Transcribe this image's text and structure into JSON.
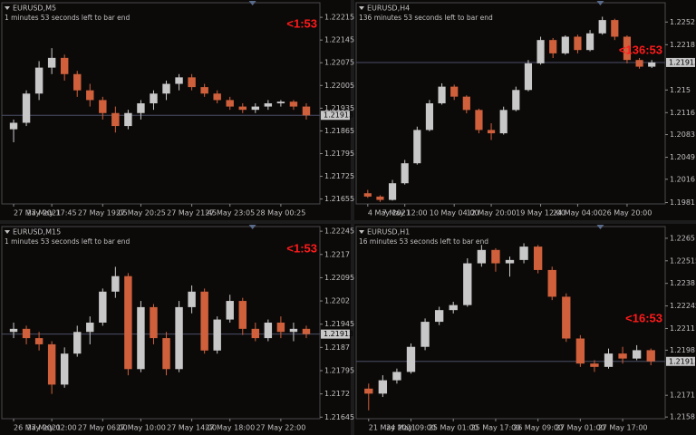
{
  "chart_data": [
    {
      "type": "candlestick",
      "title": "EURUSD,M5",
      "subtitle": "1 minutes 53 seconds left to bar end",
      "annotation": "<1:53",
      "series": [
        {
          "up_color": "#c8c8c8",
          "down_color": "#d0603c",
          "values": [
            [
              1.2187,
              1.219,
              1.2183,
              1.2189
            ],
            [
              1.2189,
              1.2199,
              1.2188,
              1.2198
            ],
            [
              1.2198,
              1.2208,
              1.2196,
              1.2206
            ],
            [
              1.2206,
              1.2212,
              1.2204,
              1.2209
            ],
            [
              1.2209,
              1.221,
              1.2202,
              1.2204
            ],
            [
              1.2204,
              1.2205,
              1.2197,
              1.2199
            ],
            [
              1.2199,
              1.2201,
              1.2194,
              1.2196
            ],
            [
              1.2196,
              1.2197,
              1.219,
              1.2192
            ],
            [
              1.2192,
              1.2194,
              1.2186,
              1.2188
            ],
            [
              1.2188,
              1.2193,
              1.2187,
              1.2192
            ],
            [
              1.2192,
              1.2196,
              1.219,
              1.2195
            ],
            [
              1.2195,
              1.2199,
              1.2193,
              1.2198
            ],
            [
              1.2198,
              1.2202,
              1.2196,
              1.2201
            ],
            [
              1.2201,
              1.2204,
              1.2199,
              1.2203
            ],
            [
              1.2203,
              1.2204,
              1.2199,
              1.22
            ],
            [
              1.22,
              1.2201,
              1.2197,
              1.2198
            ],
            [
              1.2198,
              1.2199,
              1.2195,
              1.2196
            ],
            [
              1.2196,
              1.2197,
              1.2193,
              1.2194
            ],
            [
              1.2194,
              1.2195,
              1.2192,
              1.2193
            ],
            [
              1.2193,
              1.2195,
              1.2192,
              1.2194
            ],
            [
              1.2194,
              1.2196,
              1.2193,
              1.2195
            ],
            [
              1.2195,
              1.2196,
              1.2194,
              1.21955
            ],
            [
              1.21955,
              1.2196,
              1.2193,
              1.2194
            ],
            [
              1.2194,
              1.2195,
              1.219,
              1.21913
            ]
          ]
        }
      ],
      "ylim": [
        1.2164,
        1.2226
      ],
      "yticks": [
        1.22215,
        1.22145,
        1.22075,
        1.22005,
        1.21935,
        1.21865,
        1.21795,
        1.21725,
        1.21655
      ],
      "xticks": [
        {
          "value": 0,
          "label": "27 May 2021"
        },
        {
          "value": 3,
          "label": "27 May 17:45"
        },
        {
          "value": 7,
          "label": "27 May 19:05"
        },
        {
          "value": 10,
          "label": "27 May 20:25"
        },
        {
          "value": 14,
          "label": "27 May 21:45"
        },
        {
          "value": 17,
          "label": "27 May 23:05"
        },
        {
          "value": 21,
          "label": "28 May 00:25"
        }
      ],
      "current_price": 1.21913
    },
    {
      "type": "candlestick",
      "title": "EURUSD,H4",
      "subtitle": "136 minutes 53 seconds left to bar end",
      "annotation": "<136:53",
      "series": [
        {
          "up_color": "#c8c8c8",
          "down_color": "#d0603c",
          "values": [
            [
              1.1995,
              1.2,
              1.1988,
              1.199
            ],
            [
              1.199,
              1.1992,
              1.1982,
              1.1985
            ],
            [
              1.1985,
              1.2015,
              1.1984,
              1.201
            ],
            [
              1.201,
              1.2045,
              1.2008,
              1.204
            ],
            [
              1.204,
              1.2095,
              1.2038,
              1.209
            ],
            [
              1.209,
              1.2135,
              1.2088,
              1.213
            ],
            [
              1.213,
              1.216,
              1.2128,
              1.2155
            ],
            [
              1.2155,
              1.2158,
              1.2135,
              1.214
            ],
            [
              1.214,
              1.2142,
              1.2115,
              1.212
            ],
            [
              1.212,
              1.2122,
              1.2085,
              1.209
            ],
            [
              1.209,
              1.21,
              1.2075,
              1.2085
            ],
            [
              1.2085,
              1.2125,
              1.2083,
              1.212
            ],
            [
              1.212,
              1.2155,
              1.2118,
              1.215
            ],
            [
              1.215,
              1.2195,
              1.2148,
              1.219
            ],
            [
              1.219,
              1.223,
              1.2188,
              1.2225
            ],
            [
              1.2225,
              1.2228,
              1.2198,
              1.2205
            ],
            [
              1.2205,
              1.2232,
              1.2203,
              1.223
            ],
            [
              1.223,
              1.2233,
              1.2205,
              1.221
            ],
            [
              1.221,
              1.224,
              1.2208,
              1.2235
            ],
            [
              1.2235,
              1.226,
              1.2233,
              1.2255
            ],
            [
              1.2255,
              1.2257,
              1.2225,
              1.223
            ],
            [
              1.223,
              1.2232,
              1.219,
              1.2195
            ],
            [
              1.2195,
              1.2198,
              1.2182,
              1.2185
            ],
            [
              1.2185,
              1.2195,
              1.2183,
              1.21913
            ]
          ]
        }
      ],
      "ylim": [
        1.1979,
        1.2281
      ],
      "yticks": [
        1.2252,
        1.2218,
        1.215,
        1.2116,
        1.2083,
        1.2049,
        1.2016,
        1.1981
      ],
      "xticks": [
        {
          "value": 0,
          "label": "4 May 2021"
        },
        {
          "value": 3,
          "label": "7 May 12:00"
        },
        {
          "value": 7,
          "label": "10 May 04:00"
        },
        {
          "value": 10,
          "label": "12 May 20:00"
        },
        {
          "value": 14,
          "label": "19 May 12:00"
        },
        {
          "value": 17,
          "label": "24 May 04:00"
        },
        {
          "value": 21,
          "label": "26 May 20:00"
        }
      ],
      "current_price": 1.21913
    },
    {
      "type": "candlestick",
      "title": "EURUSD,M15",
      "subtitle": "1 minutes 53 seconds left to bar end",
      "annotation": "<1:53",
      "series": [
        {
          "up_color": "#c8c8c8",
          "down_color": "#d0603c",
          "values": [
            [
              1.2192,
              1.2195,
              1.219,
              1.2193
            ],
            [
              1.2193,
              1.2194,
              1.2188,
              1.219
            ],
            [
              1.219,
              1.2192,
              1.2186,
              1.2188
            ],
            [
              1.2188,
              1.2189,
              1.2172,
              1.2175
            ],
            [
              1.2175,
              1.2187,
              1.2174,
              1.2185
            ],
            [
              1.2185,
              1.2194,
              1.2184,
              1.2192
            ],
            [
              1.2192,
              1.2197,
              1.2188,
              1.2195
            ],
            [
              1.2195,
              1.2206,
              1.2194,
              1.2205
            ],
            [
              1.2205,
              1.2213,
              1.2203,
              1.221
            ],
            [
              1.221,
              1.2211,
              1.2178,
              1.218
            ],
            [
              1.218,
              1.2202,
              1.2179,
              1.22
            ],
            [
              1.22,
              1.2201,
              1.2188,
              1.219
            ],
            [
              1.219,
              1.2192,
              1.2178,
              1.218
            ],
            [
              1.218,
              1.2202,
              1.2179,
              1.22
            ],
            [
              1.22,
              1.2207,
              1.2198,
              1.2205
            ],
            [
              1.2205,
              1.2206,
              1.2185,
              1.2186
            ],
            [
              1.2186,
              1.2197,
              1.2185,
              1.2196
            ],
            [
              1.2196,
              1.2204,
              1.2195,
              1.2202
            ],
            [
              1.2202,
              1.2203,
              1.2191,
              1.2193
            ],
            [
              1.2193,
              1.2195,
              1.2189,
              1.219
            ],
            [
              1.219,
              1.2196,
              1.2189,
              1.2195
            ],
            [
              1.2195,
              1.2197,
              1.219,
              1.2192
            ],
            [
              1.2192,
              1.2195,
              1.2189,
              1.2193
            ],
            [
              1.2193,
              1.2194,
              1.219,
              1.21913
            ]
          ]
        }
      ],
      "ylim": [
        1.2164,
        1.2226
      ],
      "yticks": [
        1.22245,
        1.2217,
        1.22095,
        1.2202,
        1.21945,
        1.2187,
        1.21795,
        1.2172,
        1.21645
      ],
      "xticks": [
        {
          "value": 0,
          "label": "26 May 2021"
        },
        {
          "value": 3,
          "label": "27 May 02:00"
        },
        {
          "value": 7,
          "label": "27 May 06:00"
        },
        {
          "value": 10,
          "label": "27 May 10:00"
        },
        {
          "value": 14,
          "label": "27 May 14:00"
        },
        {
          "value": 17,
          "label": "27 May 18:00"
        },
        {
          "value": 21,
          "label": "27 May 22:00"
        }
      ],
      "current_price": 1.21913
    },
    {
      "type": "candlestick",
      "title": "EURUSD,H1",
      "subtitle": "16 minutes 53 seconds left to bar end",
      "annotation": "<16:53",
      "series": [
        {
          "up_color": "#c8c8c8",
          "down_color": "#d0603c",
          "values": [
            [
              1.2175,
              1.2178,
              1.2162,
              1.2172
            ],
            [
              1.2172,
              1.2183,
              1.217,
              1.218
            ],
            [
              1.218,
              1.2187,
              1.2178,
              1.2185
            ],
            [
              1.2185,
              1.2202,
              1.2184,
              1.22
            ],
            [
              1.22,
              1.2217,
              1.2198,
              1.2215
            ],
            [
              1.2215,
              1.2224,
              1.2213,
              1.2222
            ],
            [
              1.2222,
              1.2227,
              1.222,
              1.2225
            ],
            [
              1.2225,
              1.2253,
              1.2224,
              1.225
            ],
            [
              1.225,
              1.2261,
              1.2248,
              1.2258
            ],
            [
              1.2258,
              1.2259,
              1.2245,
              1.225
            ],
            [
              1.225,
              1.2254,
              1.2242,
              1.2252
            ],
            [
              1.2252,
              1.2262,
              1.225,
              1.226
            ],
            [
              1.226,
              1.2261,
              1.2244,
              1.2246
            ],
            [
              1.2246,
              1.2248,
              1.2228,
              1.223
            ],
            [
              1.223,
              1.2232,
              1.2203,
              1.2205
            ],
            [
              1.2205,
              1.2207,
              1.2188,
              1.219
            ],
            [
              1.219,
              1.2192,
              1.2185,
              1.2188
            ],
            [
              1.2188,
              1.2199,
              1.2187,
              1.2196
            ],
            [
              1.2196,
              1.22,
              1.219,
              1.2193
            ],
            [
              1.2193,
              1.2201,
              1.2192,
              1.2198
            ],
            [
              1.2198,
              1.2199,
              1.2189,
              1.21913
            ]
          ]
        }
      ],
      "ylim": [
        1.2157,
        1.2272
      ],
      "yticks": [
        1.2265,
        1.22515,
        1.2238,
        1.22245,
        1.2211,
        1.2198,
        1.2171,
        1.2158
      ],
      "xticks": [
        {
          "value": 0,
          "label": "21 May 2021"
        },
        {
          "value": 3,
          "label": "24 May 09:00"
        },
        {
          "value": 6,
          "label": "25 May 01:00"
        },
        {
          "value": 9,
          "label": "25 May 17:00"
        },
        {
          "value": 12,
          "label": "26 May 09:00"
        },
        {
          "value": 15,
          "label": "27 May 01:00"
        },
        {
          "value": 18,
          "label": "27 May 17:00"
        }
      ],
      "current_price": 1.21913
    }
  ]
}
